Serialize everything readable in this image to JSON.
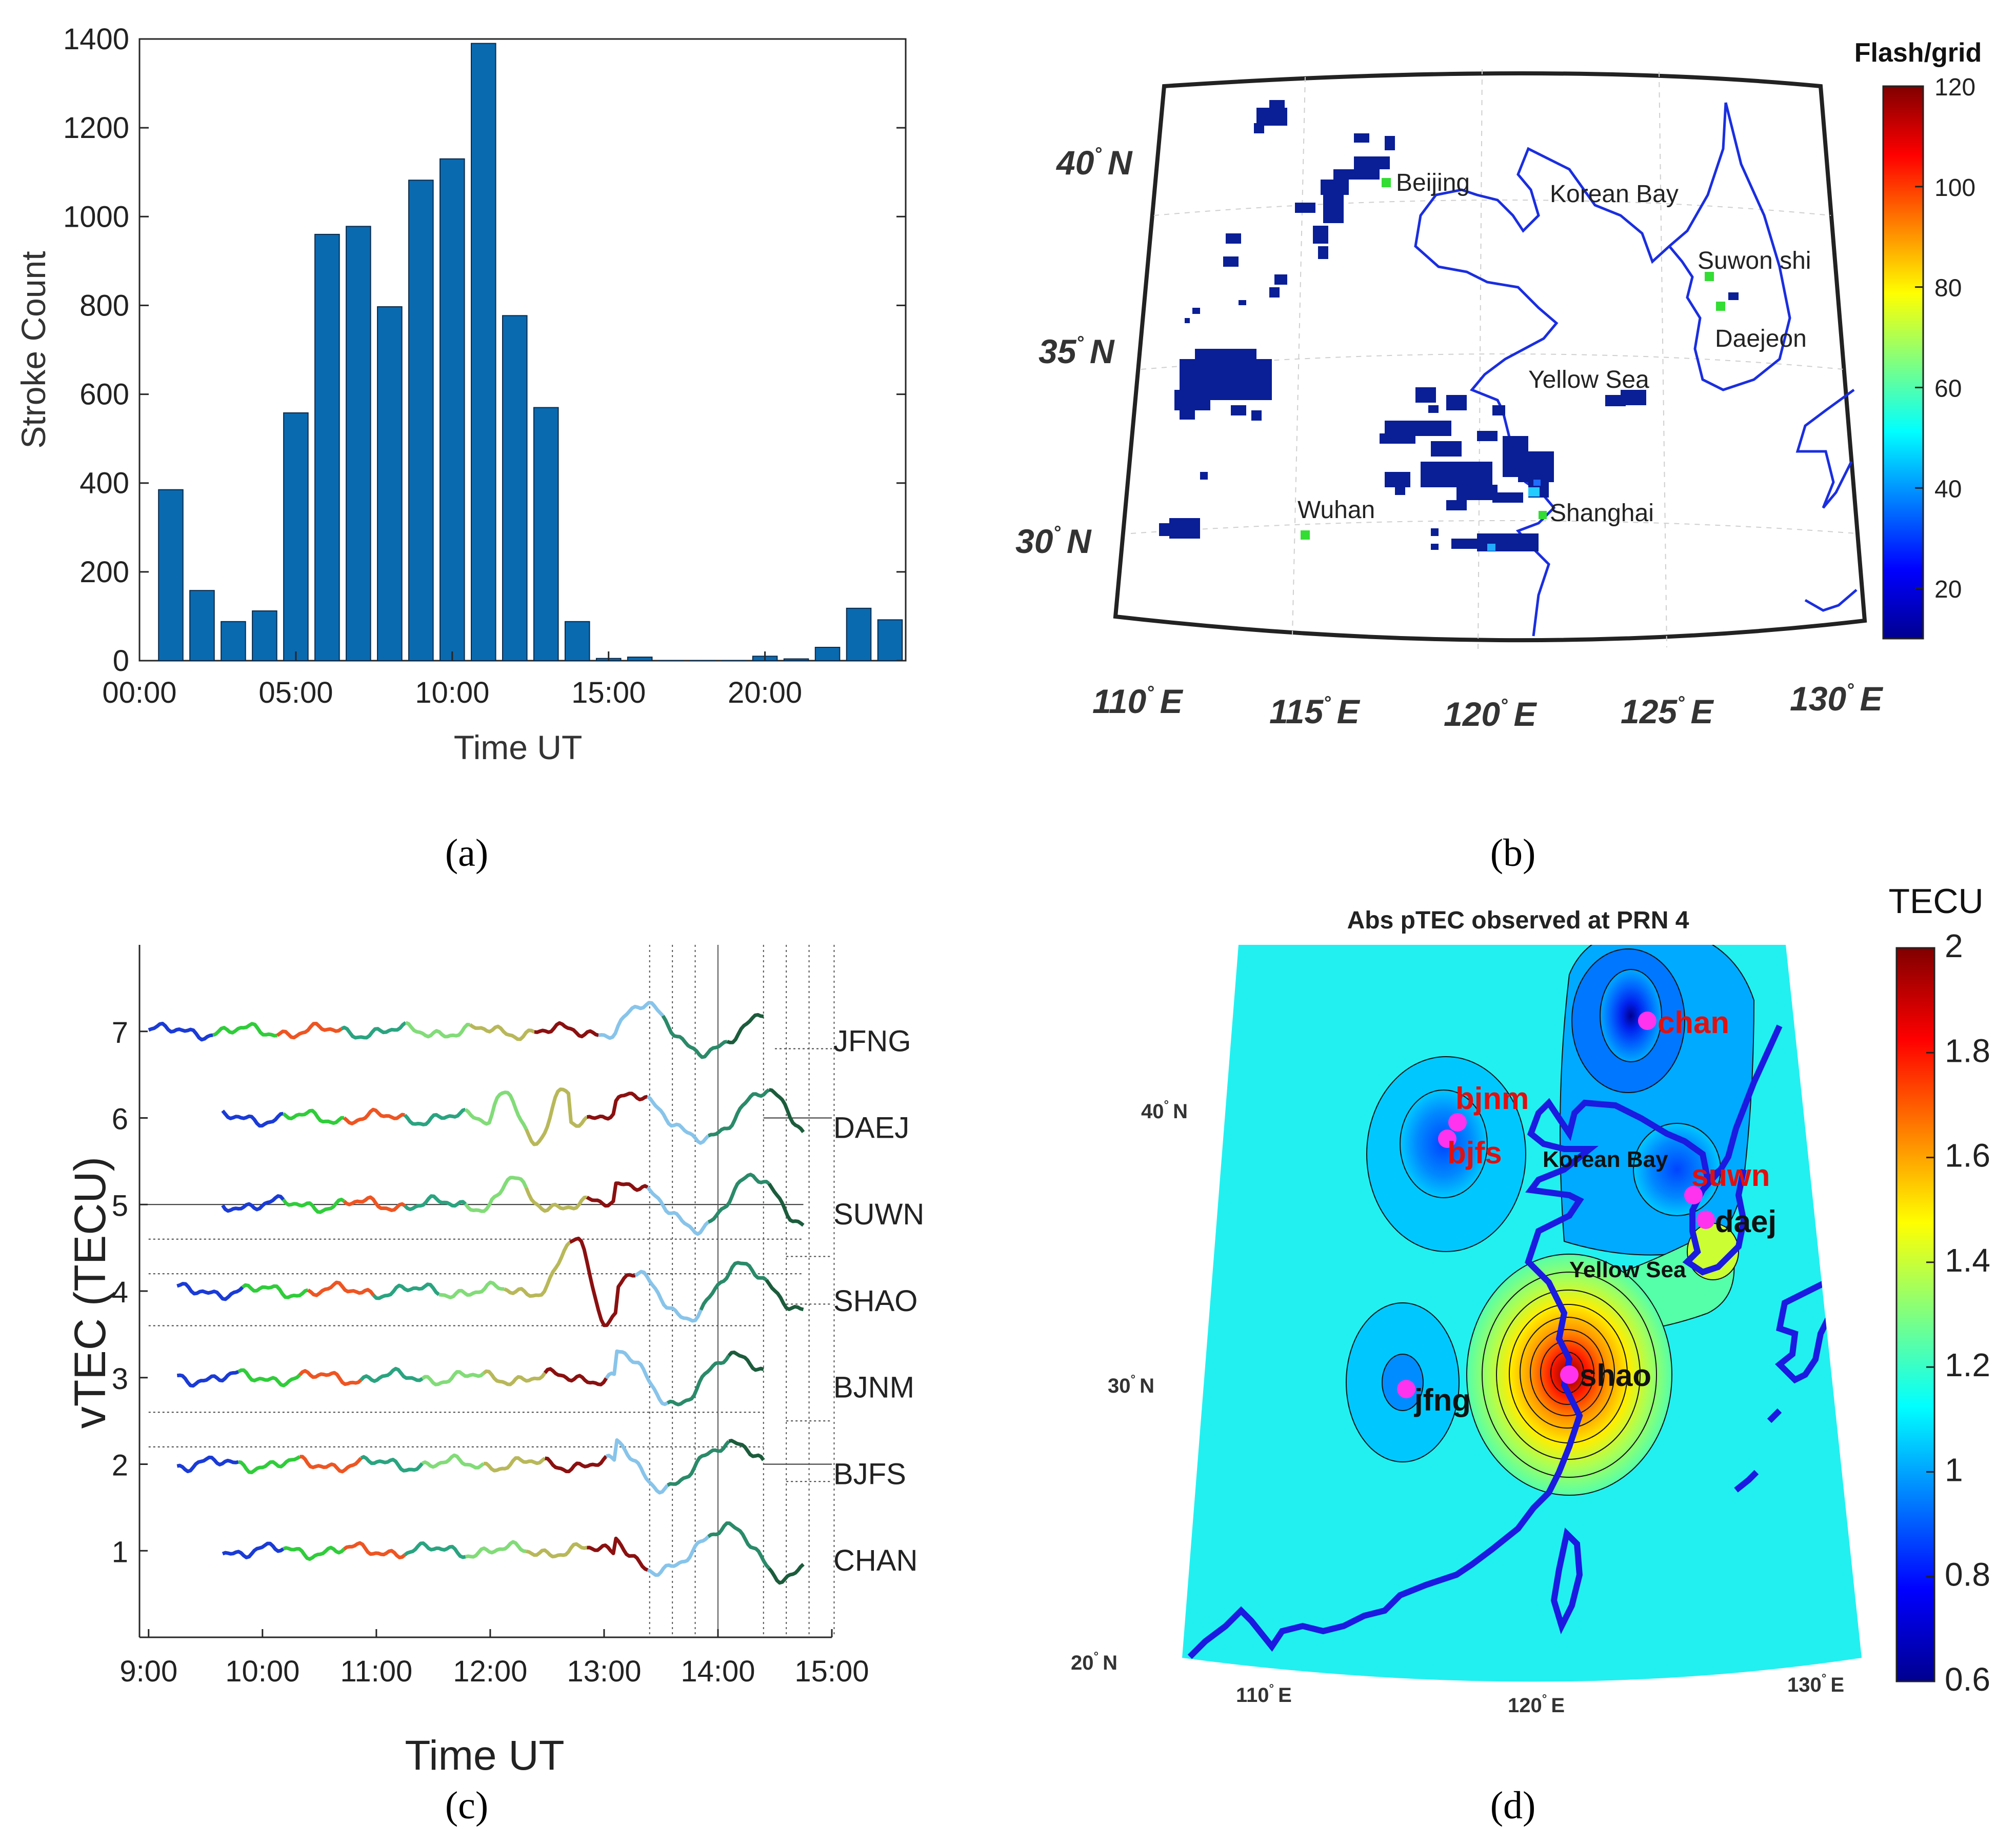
{
  "captions": {
    "a": "(a)",
    "b": "(b)",
    "c": "(c)",
    "d": "(d)"
  },
  "colors": {
    "bar": "#0a6ab0",
    "lightning": "#0a1e96",
    "city": "#33dd33",
    "coast_b": "#1a2ee0",
    "coast_d": "#1a1ae0",
    "sea_d": "#22f0f0",
    "station": "#ff33ee",
    "red_label": "#e01010"
  },
  "chart_data": [
    {
      "panel": "a",
      "type": "bar",
      "xlabel": "Time UT",
      "ylabel": "Stroke Count",
      "ylim": [
        0,
        1400
      ],
      "xlim": [
        0,
        24.5
      ],
      "yticks": [
        "0",
        "200",
        "400",
        "600",
        "800",
        "1000",
        "1200",
        "1400"
      ],
      "xticks": [
        "00:00",
        "05:00",
        "10:00",
        "15:00",
        "20:00"
      ],
      "categories": [
        1,
        2,
        3,
        4,
        5,
        6,
        7,
        8,
        9,
        10,
        11,
        12,
        13,
        14,
        15,
        16,
        17,
        18,
        19,
        20,
        21,
        22,
        23,
        24
      ],
      "values": [
        385,
        158,
        88,
        112,
        558,
        960,
        978,
        797,
        1082,
        1130,
        1390,
        777,
        570,
        88,
        5,
        8,
        0,
        0,
        0,
        10,
        4,
        30,
        118,
        92
      ]
    },
    {
      "panel": "b",
      "type": "heatmap",
      "colorbar_title": "Flash/grid",
      "colorbar_ticks": [
        "120",
        "100",
        "80",
        "60",
        "40",
        "20"
      ],
      "colorbar_range": [
        10,
        120
      ],
      "lat_labels": [
        "40",
        "35",
        "30"
      ],
      "lon_labels": [
        "110",
        "115",
        "120",
        "125",
        "130"
      ],
      "lat_suffix": "N",
      "lon_suffix": "E",
      "places": [
        "Beijing",
        "Korean Bay",
        "Suwon shi",
        "Daejeon",
        "Yellow Sea",
        "Wuhan",
        "Shanghai"
      ]
    },
    {
      "panel": "c",
      "type": "line",
      "xlabel": "Time UT",
      "ylabel": "vTEC (TECU)",
      "ylim": [
        0,
        8
      ],
      "yticks": [
        "1",
        "2",
        "3",
        "4",
        "5",
        "6",
        "7"
      ],
      "xticks": [
        "9:00",
        "10:00",
        "11:00",
        "12:00",
        "13:00",
        "14:00",
        "15:00"
      ],
      "series": [
        {
          "name": "JFNG",
          "offset": 7,
          "start": 9.0,
          "end": 14.4
        },
        {
          "name": "DAEJ",
          "offset": 6,
          "start": 9.65,
          "end": 14.75
        },
        {
          "name": "SUWN",
          "offset": 5,
          "start": 9.65,
          "end": 14.75
        },
        {
          "name": "SHAO",
          "offset": 4,
          "start": 9.25,
          "end": 14.75
        },
        {
          "name": "BJNM",
          "offset": 3,
          "start": 9.25,
          "end": 14.4
        },
        {
          "name": "BJFS",
          "offset": 2,
          "start": 9.25,
          "end": 14.4
        },
        {
          "name": "CHAN",
          "offset": 1,
          "start": 9.65,
          "end": 14.75
        }
      ]
    },
    {
      "panel": "d",
      "type": "heatmap",
      "title": "Abs pTEC observed at PRN 4",
      "colorbar_title": "TECU",
      "colorbar_ticks": [
        "2",
        "1.8",
        "1.6",
        "1.4",
        "1.2",
        "1",
        "0.8",
        "0.6"
      ],
      "colorbar_range": [
        0.6,
        2
      ],
      "lat_labels": [
        "40",
        "30",
        "20"
      ],
      "lon_labels": [
        "110",
        "120",
        "130"
      ],
      "lat_suffix": "N",
      "lon_suffix": "E",
      "places": [
        "Korean Bay",
        "Yellow Sea"
      ],
      "stations": [
        "chan",
        "bjnm",
        "bjfs",
        "suwn",
        "daej",
        "shao",
        "jfng"
      ]
    }
  ]
}
